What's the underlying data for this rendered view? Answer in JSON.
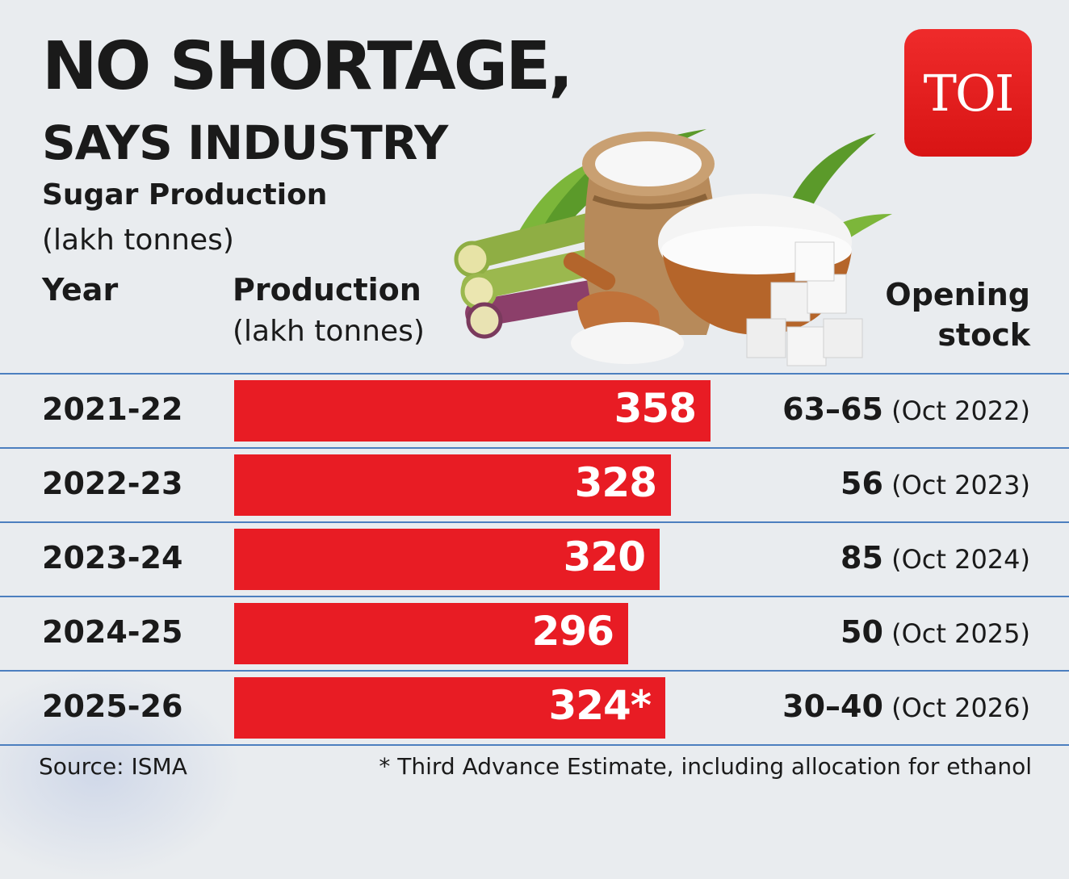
{
  "header": {
    "title_line1": "NO SHORTAGE,",
    "title_line2": "SAYS INDUSTRY",
    "subtitle": "Sugar Production",
    "subtitle_unit": "(lakh tonnes)",
    "logo_text": "TOI"
  },
  "columns": {
    "year": "Year",
    "production": "Production",
    "production_unit": "(lakh tonnes)",
    "opening_stock_line1": "Opening",
    "opening_stock_line2": "stock"
  },
  "rows": [
    {
      "year": "2021-22",
      "production_label": "358",
      "stock_value": "63–65",
      "stock_note": "(Oct 2022)"
    },
    {
      "year": "2022-23",
      "production_label": "328",
      "stock_value": "56",
      "stock_note": "(Oct 2023)"
    },
    {
      "year": "2023-24",
      "production_label": "320",
      "stock_value": "85",
      "stock_note": "(Oct 2024)"
    },
    {
      "year": "2024-25",
      "production_label": "296",
      "stock_value": "50",
      "stock_note": "(Oct 2025)"
    },
    {
      "year": "2025-26",
      "production_label": "324*",
      "stock_value": "30–40",
      "stock_note": "(Oct 2026)"
    }
  ],
  "footer": {
    "source": "Source: ISMA",
    "footnote": "* Third Advance Estimate, including allocation for ethanol"
  },
  "chart_data": {
    "type": "bar",
    "orientation": "horizontal",
    "title": "NO SHORTAGE, SAYS INDUSTRY",
    "subtitle": "Sugar Production",
    "categories": [
      "2021-22",
      "2022-23",
      "2023-24",
      "2024-25",
      "2025-26"
    ],
    "series": [
      {
        "name": "Production",
        "values": [
          358,
          328,
          320,
          296,
          324
        ]
      }
    ],
    "value_unit": "(lakh tonnes)",
    "opening_stock": [
      "63–65 (Oct 2022)",
      "56 (Oct 2023)",
      "85 (Oct 2024)",
      "50 (Oct 2025)",
      "30–40 (Oct 2026)"
    ],
    "grid": false,
    "legend": "none"
  },
  "colors": {
    "bar": "#e81c24",
    "background": "#e9ecef",
    "divider": "#4c7fbf",
    "logo": "#e11b22",
    "text": "#1a1a1a"
  },
  "icons": {
    "logo": "toi-logo",
    "illustration": "sugar-illustration"
  }
}
